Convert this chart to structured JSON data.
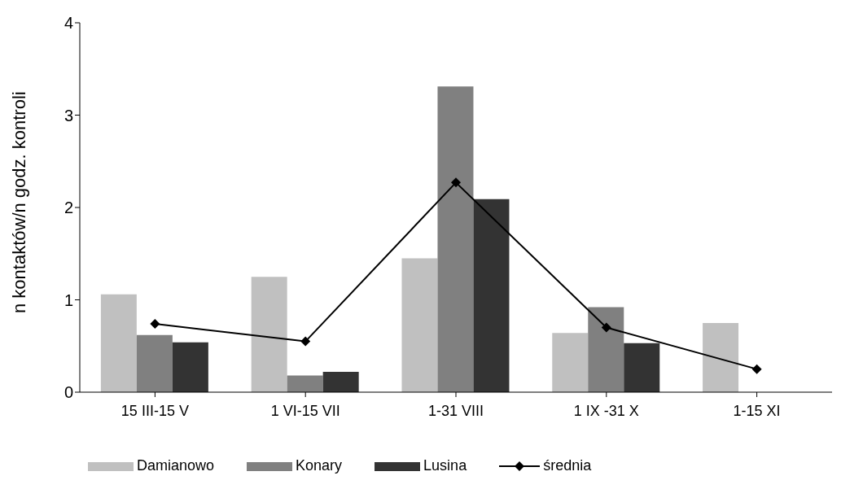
{
  "chart_data": {
    "type": "bar",
    "ylabel": "n kontaktów/n godz. kontroli",
    "categories": [
      "15 III-15 V",
      "1 VI-15 VII",
      "1-31 VIII",
      "1 IX -31 X",
      "1-15 XI"
    ],
    "series": [
      {
        "name": "Damianowo",
        "color": "#c0c0c0",
        "values": [
          1.06,
          1.25,
          1.45,
          0.64,
          0.75
        ]
      },
      {
        "name": "Konary",
        "color": "#808080",
        "values": [
          0.62,
          0.18,
          3.31,
          0.92,
          null
        ]
      },
      {
        "name": "Lusina",
        "color": "#333333",
        "values": [
          0.54,
          0.22,
          2.09,
          0.53,
          null
        ]
      },
      {
        "name": "średnia",
        "type": "line",
        "color": "#000000",
        "marker": "diamond",
        "values": [
          0.74,
          0.55,
          2.27,
          0.7,
          0.25
        ]
      }
    ],
    "ylim": [
      0,
      4
    ],
    "yticks": [
      0,
      1,
      2,
      3,
      4
    ],
    "legend": "bottom"
  }
}
